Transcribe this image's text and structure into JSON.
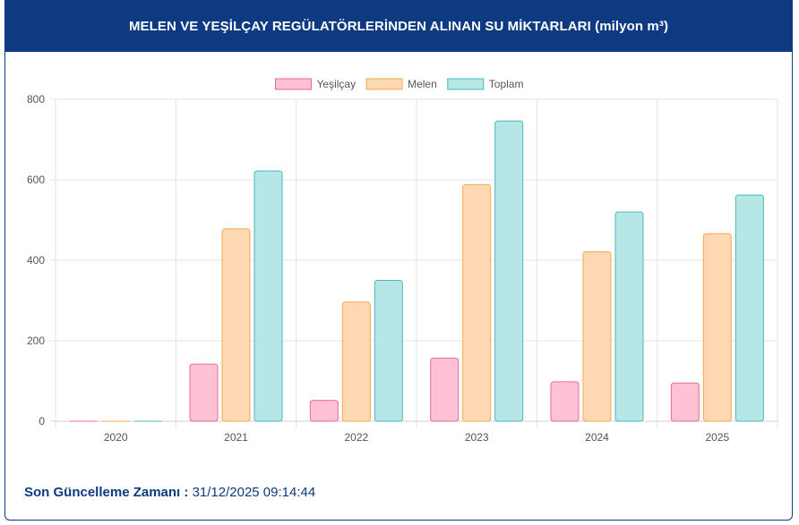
{
  "header": {
    "title": "MELEN VE YEŞİLÇAY REGÜLATÖRLERİNDEN ALINAN SU MİKTARLARI (milyon m³)"
  },
  "chart_data": {
    "type": "bar",
    "title": "MELEN VE YEŞİLÇAY REGÜLATÖRLERİNDEN ALINAN SU MİKTARLARI (milyon m³)",
    "categories": [
      "2020",
      "2021",
      "2022",
      "2023",
      "2024",
      "2025"
    ],
    "series": [
      {
        "name": "Yeşilçay",
        "values": [
          0,
          142,
          52,
          157,
          98,
          95
        ],
        "fill": "#ffc1d3",
        "stroke": "#e86b94"
      },
      {
        "name": "Melen",
        "values": [
          0,
          478,
          296,
          588,
          421,
          466
        ],
        "fill": "#fed8b2",
        "stroke": "#f5a94e"
      },
      {
        "name": "Toplam",
        "values": [
          0,
          622,
          350,
          746,
          520,
          562
        ],
        "fill": "#b6e6e6",
        "stroke": "#4ab9b9"
      }
    ],
    "ylim": [
      0,
      800
    ],
    "yticks": [
      0,
      200,
      400,
      600,
      800
    ],
    "legend": "top-center",
    "grid": true
  },
  "footer": {
    "label": "Son Güncelleme Zamanı :",
    "value": "31/12/2025 09:14:44"
  }
}
